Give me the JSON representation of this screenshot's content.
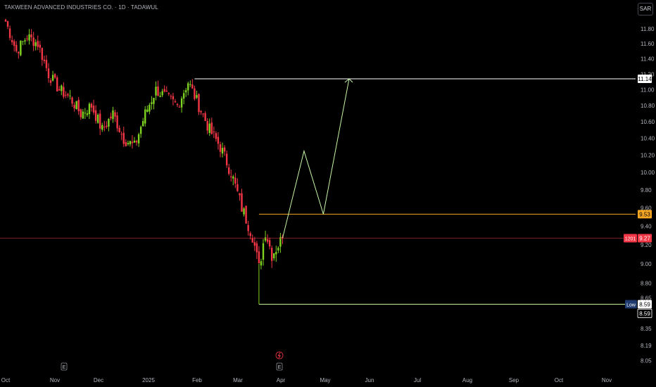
{
  "header": {
    "title": "TAKWEEN ADVANCED INDUSTRIES CO. · 1D · TADAWUL",
    "currency": "SAR"
  },
  "colors": {
    "background": "#000000",
    "up": "#7ed321",
    "down": "#f23645",
    "resistance": "#ffffff",
    "target": "#ffffff",
    "mid_level": "#f5a623",
    "support": "#c8f7a8",
    "projection": "#c8f7a8",
    "current": "#f23645",
    "axis_text": "#b2b5be",
    "low_badge": "#1e3a6e"
  },
  "chart_data": {
    "type": "candlestick",
    "title": "TAKWEEN ADVANCED INDUSTRIES CO. · 1D · TADAWUL",
    "ylabel": "SAR",
    "y_scale": "log",
    "ylim": [
      8.0,
      12.2
    ],
    "x_tick_labels": [
      "Oct",
      "Nov",
      "Dec",
      "2025",
      "Feb",
      "Mar",
      "Apr",
      "May",
      "Jun",
      "Jul",
      "Aug",
      "Sep",
      "Oct",
      "Nov"
    ],
    "y_tick_labels": [
      "11.80",
      "11.60",
      "11.40",
      "11.20",
      "11.00",
      "10.80",
      "10.60",
      "10.40",
      "10.20",
      "10.00",
      "9.80",
      "9.60",
      "9.40",
      "9.20",
      "9.00",
      "8.80",
      "8.65",
      "8.35",
      "8.19",
      "8.05"
    ],
    "y_ticks": [
      11.8,
      11.6,
      11.4,
      11.2,
      11.0,
      10.8,
      10.6,
      10.4,
      10.2,
      10.0,
      9.8,
      9.6,
      9.4,
      9.2,
      9.0,
      8.8,
      8.65,
      8.35,
      8.19,
      8.05
    ],
    "series_path": [
      [
        0,
        11.9
      ],
      [
        5,
        11.5
      ],
      [
        10,
        11.7
      ],
      [
        15,
        11.6
      ],
      [
        20,
        11.2
      ],
      [
        25,
        11.0
      ],
      [
        30,
        10.9
      ],
      [
        35,
        10.7
      ],
      [
        40,
        10.8
      ],
      [
        45,
        10.5
      ],
      [
        50,
        10.7
      ],
      [
        55,
        10.4
      ],
      [
        60,
        10.3
      ],
      [
        65,
        10.7
      ],
      [
        70,
        11.0
      ],
      [
        75,
        10.9
      ],
      [
        80,
        10.8
      ],
      [
        85,
        11.1
      ],
      [
        90,
        10.8
      ],
      [
        95,
        10.5
      ],
      [
        100,
        10.3
      ],
      [
        105,
        10.0
      ],
      [
        110,
        9.6
      ],
      [
        115,
        9.3
      ],
      [
        118,
        8.95
      ],
      [
        121,
        9.35
      ],
      [
        124,
        9.1
      ],
      [
        127,
        9.2
      ],
      [
        129,
        9.27
      ]
    ],
    "levels": [
      {
        "label": "11.14",
        "value": 11.14
      },
      {
        "label": "9.53",
        "value": 9.53
      },
      {
        "label": "9.27",
        "value": 9.27,
        "tag": "1201"
      },
      {
        "label": "8.59",
        "value": 8.59,
        "tag": "Low"
      }
    ],
    "projection": [
      [
        129,
        9.27
      ],
      [
        139,
        10.25
      ],
      [
        148,
        9.53
      ],
      [
        160,
        11.14
      ]
    ],
    "events": [
      {
        "label": "E",
        "day": 35
      },
      {
        "label": "E",
        "day": 126
      }
    ],
    "last_price": 9.27,
    "low": 8.59
  }
}
